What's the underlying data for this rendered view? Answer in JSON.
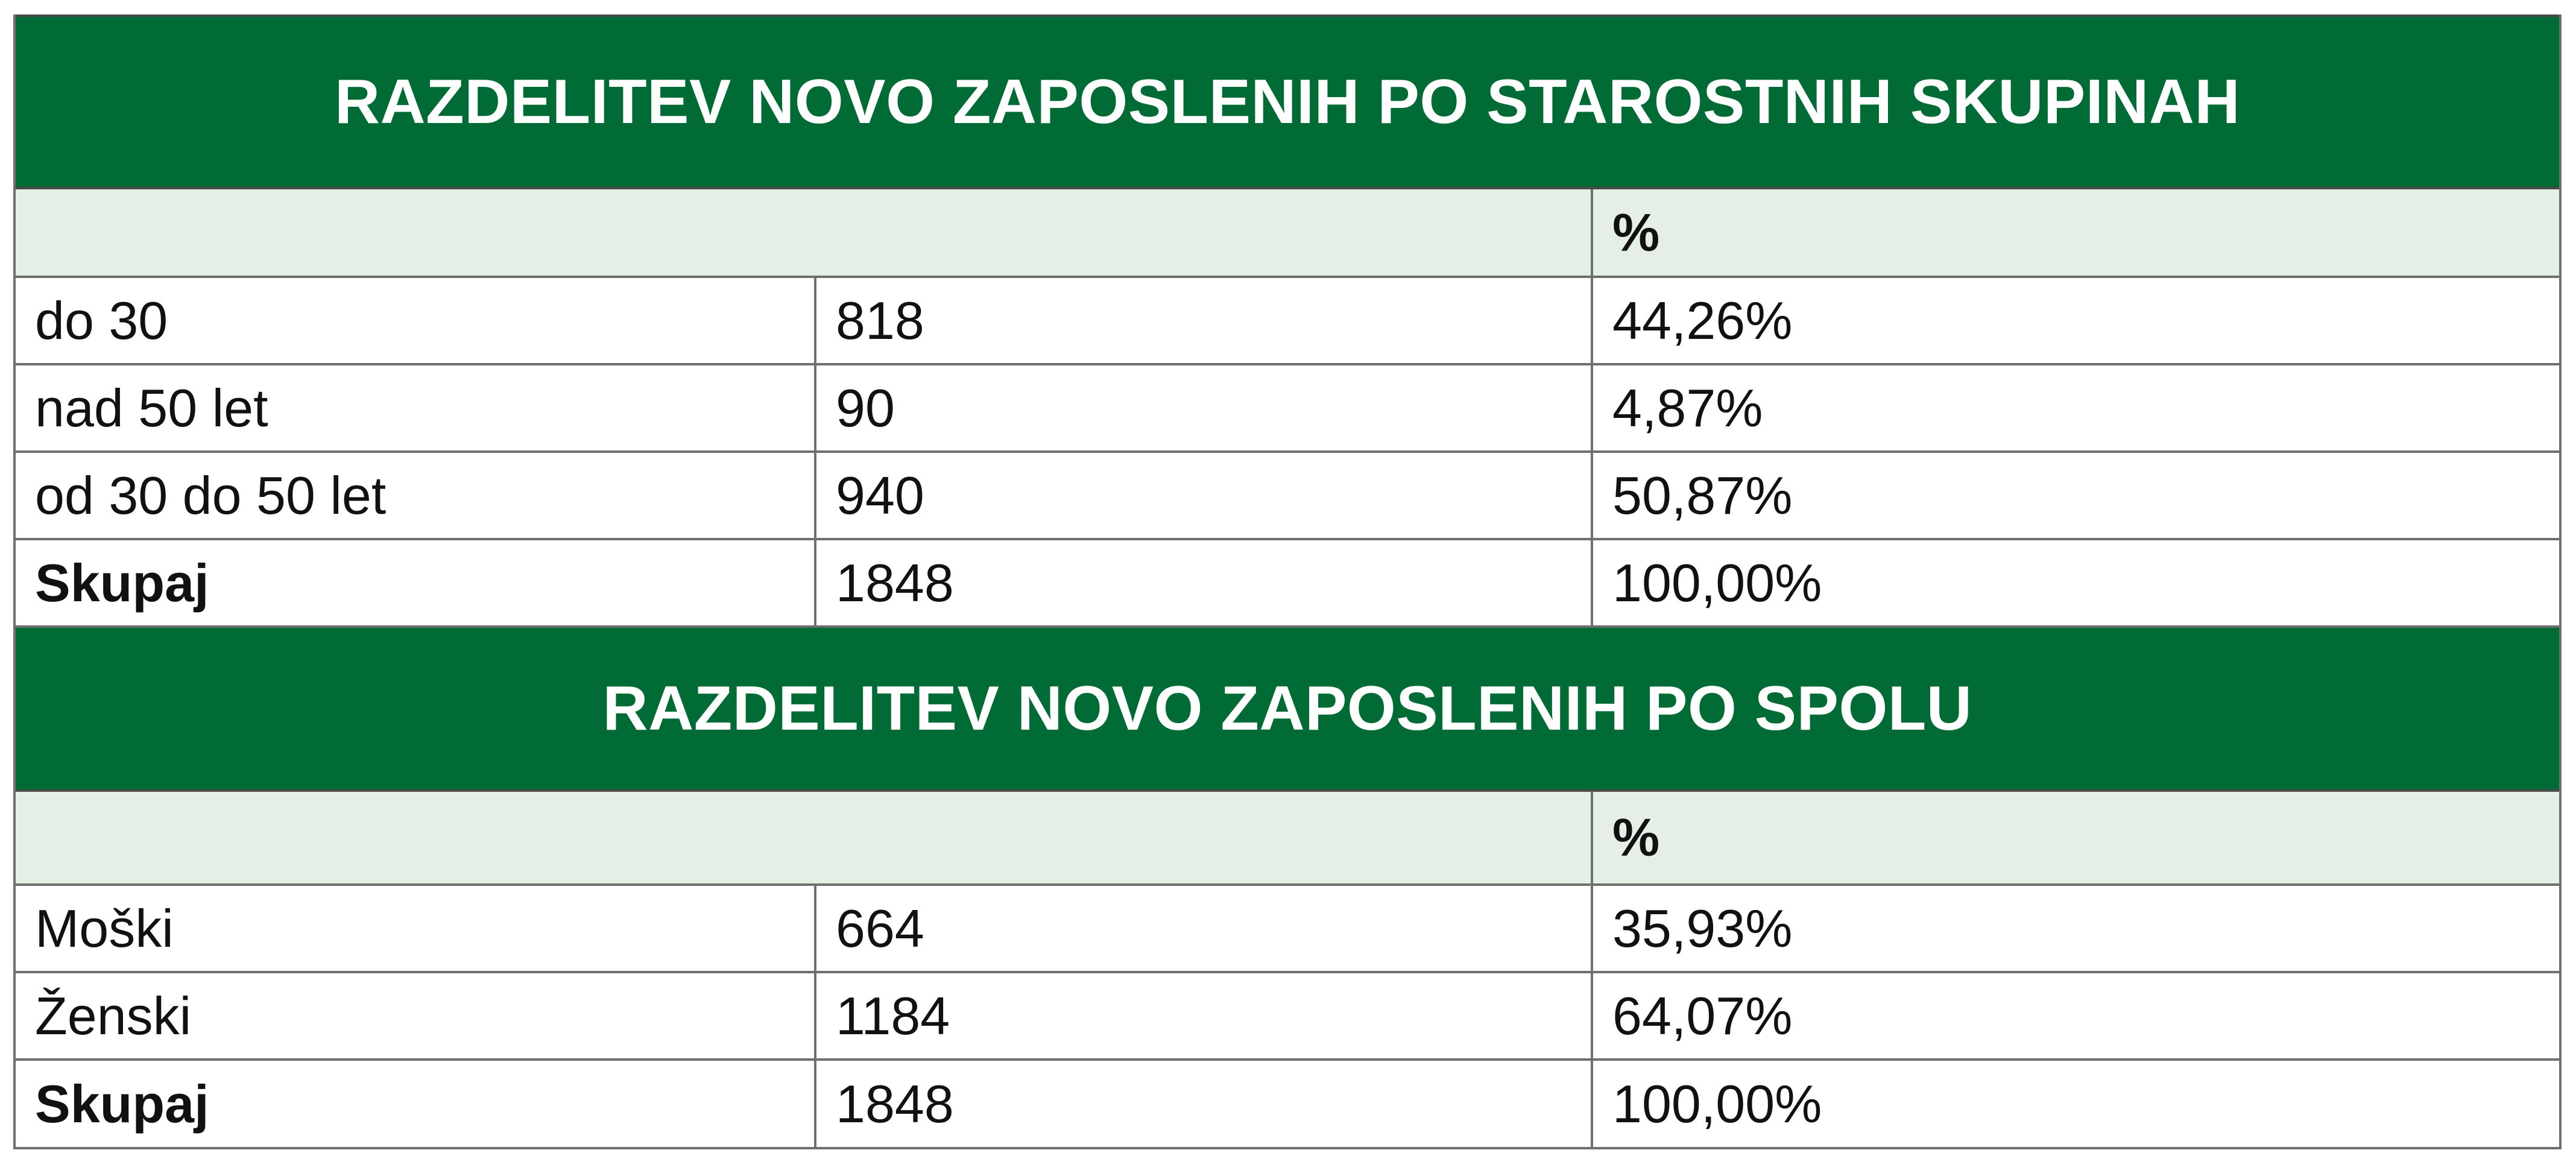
{
  "age_section": {
    "title": "RAZDELITEV NOVO ZAPOSLENIH PO STAROSTNIH SKUPINAH",
    "header": {
      "col1": "",
      "col3": "%"
    },
    "rows": [
      {
        "label": "do 30",
        "count": "818",
        "percent": "44,26%"
      },
      {
        "label": "nad 50 let",
        "count": "90",
        "percent": "4,87%"
      },
      {
        "label": "od 30 do 50 let",
        "count": "940",
        "percent": "50,87%"
      }
    ],
    "total": {
      "label": "Skupaj",
      "count": "1848",
      "percent": "100,00%"
    }
  },
  "gender_section": {
    "title": "RAZDELITEV NOVO ZAPOSLENIH PO SPOLU",
    "header": {
      "col1": "",
      "col3": "%"
    },
    "rows": [
      {
        "label": "Moški",
        "count": "664",
        "percent": "35,93%"
      },
      {
        "label": "Ženski",
        "count": "1184",
        "percent": "64,07%"
      }
    ],
    "total": {
      "label": "Skupaj",
      "count": "1848",
      "percent": "100,00%"
    }
  },
  "colors": {
    "title_background": "#006b34",
    "title_text": "#ffffff",
    "header_background": "#e6efe6",
    "grid_lines": "#6f6f6f"
  }
}
